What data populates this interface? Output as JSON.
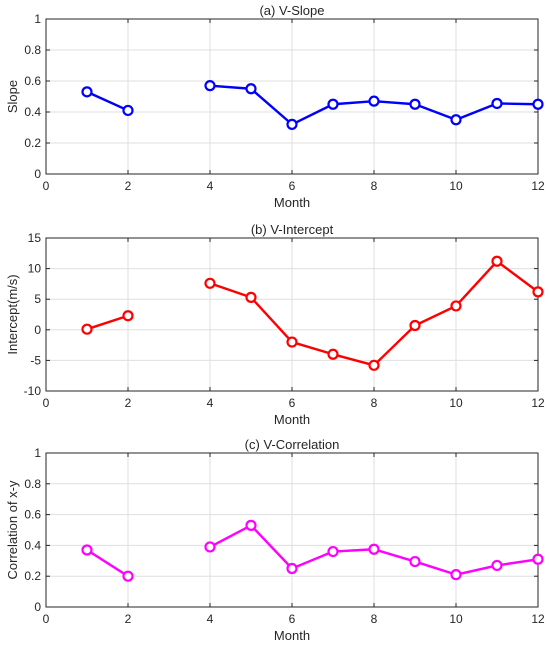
{
  "chart_data": [
    {
      "type": "line",
      "title": "(a) V-Slope",
      "xlabel": "Month",
      "ylabel": "Slope",
      "xlim": [
        0,
        12
      ],
      "ylim": [
        0,
        1
      ],
      "xticks": [
        0,
        2,
        4,
        6,
        8,
        10,
        12
      ],
      "yticks": [
        0,
        0.2,
        0.4,
        0.6,
        0.8,
        1
      ],
      "ytick_labels": [
        "0",
        "0.2",
        "0.4",
        "0.6",
        "0.8",
        "1"
      ],
      "grid": true,
      "color": "#0000ff",
      "marker": "circle",
      "series": [
        {
          "x": [
            1,
            2,
            3,
            4,
            5,
            6,
            7,
            8,
            9,
            10,
            11,
            12
          ],
          "y": [
            0.53,
            0.41,
            null,
            0.57,
            0.55,
            0.32,
            0.45,
            0.47,
            0.45,
            0.35,
            0.455,
            0.45
          ]
        }
      ]
    },
    {
      "type": "line",
      "title": "(b) V-Intercept",
      "xlabel": "Month",
      "ylabel": "Intercept(m/s)",
      "xlim": [
        0,
        12
      ],
      "ylim": [
        -10,
        15
      ],
      "xticks": [
        0,
        2,
        4,
        6,
        8,
        10,
        12
      ],
      "yticks": [
        -10,
        -5,
        0,
        5,
        10,
        15
      ],
      "ytick_labels": [
        "-10",
        "-5",
        "0",
        "5",
        "10",
        "15"
      ],
      "grid": true,
      "color": "#ff0000",
      "marker": "circle",
      "series": [
        {
          "x": [
            1,
            2,
            3,
            4,
            5,
            6,
            7,
            8,
            9,
            10,
            11,
            12
          ],
          "y": [
            0.1,
            2.3,
            null,
            7.6,
            5.3,
            -2.0,
            -4.0,
            -5.8,
            0.7,
            3.9,
            11.2,
            6.2
          ]
        }
      ]
    },
    {
      "type": "line",
      "title": "(c) V-Correlation",
      "xlabel": "Month",
      "ylabel": "Correlation of x-y",
      "xlim": [
        0,
        12
      ],
      "ylim": [
        0,
        1
      ],
      "xticks": [
        0,
        2,
        4,
        6,
        8,
        10,
        12
      ],
      "yticks": [
        0,
        0.2,
        0.4,
        0.6,
        0.8,
        1
      ],
      "ytick_labels": [
        "0",
        "0.2",
        "0.4",
        "0.6",
        "0.8",
        "1"
      ],
      "grid": true,
      "color": "#ff00ff",
      "marker": "circle",
      "series": [
        {
          "x": [
            1,
            2,
            3,
            4,
            5,
            6,
            7,
            8,
            9,
            10,
            11,
            12
          ],
          "y": [
            0.37,
            0.2,
            null,
            0.39,
            0.53,
            0.25,
            0.36,
            0.375,
            0.295,
            0.21,
            0.27,
            0.31
          ]
        }
      ]
    }
  ]
}
